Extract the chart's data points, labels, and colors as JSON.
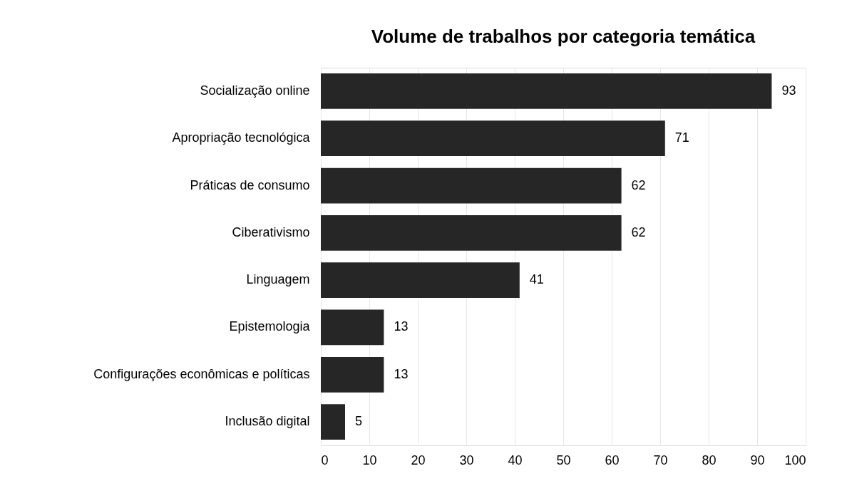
{
  "chart_data": {
    "type": "bar",
    "orientation": "horizontal",
    "title": "Volume de trabalhos por categoria temática",
    "categories": [
      "Socialização online",
      "Apropriação tecnológica",
      "Práticas de consumo",
      "Ciberativismo",
      "Linguagem",
      "Epistemologia",
      "Configurações econômicas e políticas",
      "Inclusão digital"
    ],
    "values": [
      93,
      71,
      62,
      62,
      41,
      13,
      13,
      5
    ],
    "color": "#262626",
    "xlim": [
      0,
      100
    ],
    "xticks": [
      0,
      10,
      20,
      30,
      40,
      50,
      60,
      70,
      80,
      90,
      100
    ],
    "grid": "x",
    "data_labels": true
  }
}
